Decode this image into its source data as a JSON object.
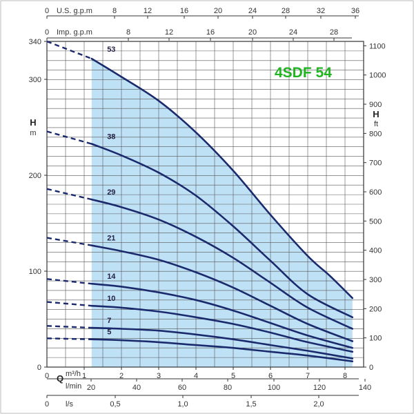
{
  "chart_data": {
    "type": "line",
    "title": "4SDF 54",
    "title_color": "#22b522",
    "series_color": "#1a2a6c",
    "region_color": "#bfe1f6",
    "left_axis": {
      "label": "H",
      "unit": "m",
      "range": [
        0,
        340
      ],
      "ticks": [
        0,
        100,
        200,
        300,
        340
      ]
    },
    "right_axis": {
      "label": "H",
      "unit": "ft",
      "range": [
        0,
        1115
      ],
      "ticks": [
        0,
        100,
        200,
        300,
        400,
        500,
        600,
        700,
        800,
        900,
        1000,
        1100
      ]
    },
    "top_axis_usgpm": {
      "label": "U.S. g.p.m",
      "ticks": [
        "0",
        "8",
        "12",
        "16",
        "20",
        "24",
        "28",
        "32",
        "36"
      ]
    },
    "top_axis_impgpm": {
      "label": "Imp. g.p.m",
      "ticks": [
        "0",
        "8",
        "12",
        "16",
        "20",
        "24",
        "28"
      ]
    },
    "bottom_axis_m3h": {
      "label": "Q",
      "unit": "m³/h",
      "range": [
        0,
        8.5
      ],
      "ticks": [
        "0",
        "1",
        "2",
        "3",
        "4",
        "5",
        "6",
        "7",
        "8"
      ]
    },
    "bottom_axis_lmin": {
      "unit": "l/min",
      "ticks": [
        "20",
        "40",
        "60",
        "80",
        "100",
        "120",
        "140"
      ]
    },
    "bottom_axis_ls": {
      "unit": "l/s",
      "ticks": [
        "0",
        "0,5",
        "1,0",
        "1,5",
        "2,0"
      ]
    },
    "operating_range_m3h": [
      1.2,
      8.2
    ],
    "grid": true,
    "series": [
      {
        "name": "53",
        "x": [
          0,
          1.2,
          2,
          3,
          4,
          5,
          6,
          7,
          7.6,
          8.2
        ],
        "y": [
          340,
          322,
          303,
          278,
          245,
          205,
          159,
          116,
          95,
          72
        ]
      },
      {
        "name": "38",
        "x": [
          0,
          1.2,
          2,
          3,
          4,
          5,
          6,
          7,
          8.2
        ],
        "y": [
          246,
          233,
          221,
          203,
          179,
          147,
          111,
          76,
          52
        ]
      },
      {
        "name": "29",
        "x": [
          0,
          1.2,
          2,
          3,
          4,
          5,
          6,
          7,
          8.2
        ],
        "y": [
          186,
          175,
          167,
          154,
          136,
          114,
          88,
          62,
          40
        ]
      },
      {
        "name": "21",
        "x": [
          0,
          1.2,
          2,
          3,
          4,
          5,
          6,
          7,
          8.2
        ],
        "y": [
          135,
          127,
          121,
          112,
          99,
          83,
          64,
          45,
          27
        ]
      },
      {
        "name": "14",
        "x": [
          0,
          1.2,
          2,
          3,
          4,
          5,
          6,
          7,
          8.2
        ],
        "y": [
          92,
          87,
          84,
          78,
          70,
          59,
          46,
          33,
          20
        ]
      },
      {
        "name": "10",
        "x": [
          0,
          1.2,
          2,
          3,
          4,
          5,
          6,
          7,
          8.2
        ],
        "y": [
          68,
          64,
          62,
          58,
          52,
          45,
          36,
          26,
          16
        ]
      },
      {
        "name": "7",
        "x": [
          0,
          1.2,
          2,
          3,
          4,
          5,
          6,
          7,
          8.2
        ],
        "y": [
          43,
          41,
          40,
          38,
          34,
          29,
          23,
          17,
          9
        ]
      },
      {
        "name": "5",
        "x": [
          0,
          1.2,
          2,
          3,
          4,
          5,
          6,
          7,
          8.2
        ],
        "y": [
          30,
          29,
          28,
          26,
          23,
          20,
          16,
          12,
          6
        ]
      }
    ]
  }
}
